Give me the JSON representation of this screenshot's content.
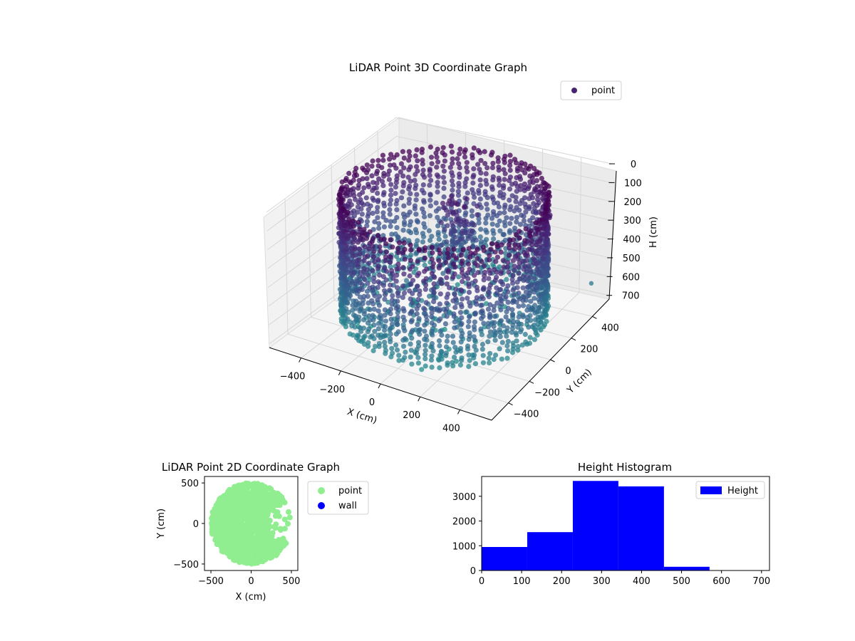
{
  "chart_data": [
    {
      "type": "scatter",
      "projection": "3d",
      "title": "LiDAR Point 3D Coordinate Graph",
      "xlabel": "X (cm)",
      "ylabel": "Y (cm)",
      "zlabel": "H (cm)",
      "xticks": [
        -400,
        -200,
        0,
        200,
        400
      ],
      "yticks": [
        -400,
        -200,
        0,
        200,
        400
      ],
      "zticks": [
        0,
        100,
        200,
        300,
        400,
        500,
        600,
        700
      ],
      "xlim": [
        -560,
        560
      ],
      "ylim": [
        -560,
        560
      ],
      "zlim": [
        0,
        720
      ],
      "z_inverted": true,
      "legend": {
        "entries": [
          "point"
        ],
        "placement": "top-right"
      },
      "colormap": "viridis (by height)",
      "grid": true,
      "series": [
        {
          "name": "point",
          "description_shape": "cylindrical wall of radius ~460 cm, heights 0-700 cm, plus interior clutter",
          "outliers": [
            {
              "x": 540,
              "y": 420,
              "h": 560
            },
            {
              "x": 430,
              "y": -120,
              "h": 600
            }
          ]
        }
      ]
    },
    {
      "type": "scatter",
      "title": "LiDAR Point 2D Coordinate Graph",
      "xlabel": "X (cm)",
      "ylabel": "Y (cm)",
      "xticks": [
        -500,
        0,
        500
      ],
      "yticks": [
        -500,
        0,
        500
      ],
      "xlim": [
        -580,
        580
      ],
      "ylim": [
        -580,
        580
      ],
      "legend": {
        "entries": [
          "point",
          "wall"
        ],
        "placement": "outside-right"
      },
      "series": [
        {
          "name": "point",
          "color": "#90ee90",
          "shape": "filled disk radius ~500 cm centered near (0,0) with notches on right side"
        },
        {
          "name": "wall",
          "color": "#0000ff",
          "values": []
        }
      ]
    },
    {
      "type": "bar",
      "subtype": "histogram",
      "title": "Height Histogram",
      "bin_edges": [
        0,
        114,
        228,
        342,
        456,
        570,
        684,
        720
      ],
      "values": [
        950,
        1550,
        3620,
        3400,
        150,
        0,
        0
      ],
      "xticks": [
        0,
        100,
        200,
        300,
        400,
        500,
        600,
        700
      ],
      "yticks": [
        0,
        1000,
        2000,
        3000
      ],
      "xlim": [
        0,
        720
      ],
      "ylim": [
        0,
        3800
      ],
      "legend": {
        "entries": [
          "Height"
        ],
        "placement": "top-right"
      },
      "color": "#0000ff",
      "grid": false
    }
  ]
}
